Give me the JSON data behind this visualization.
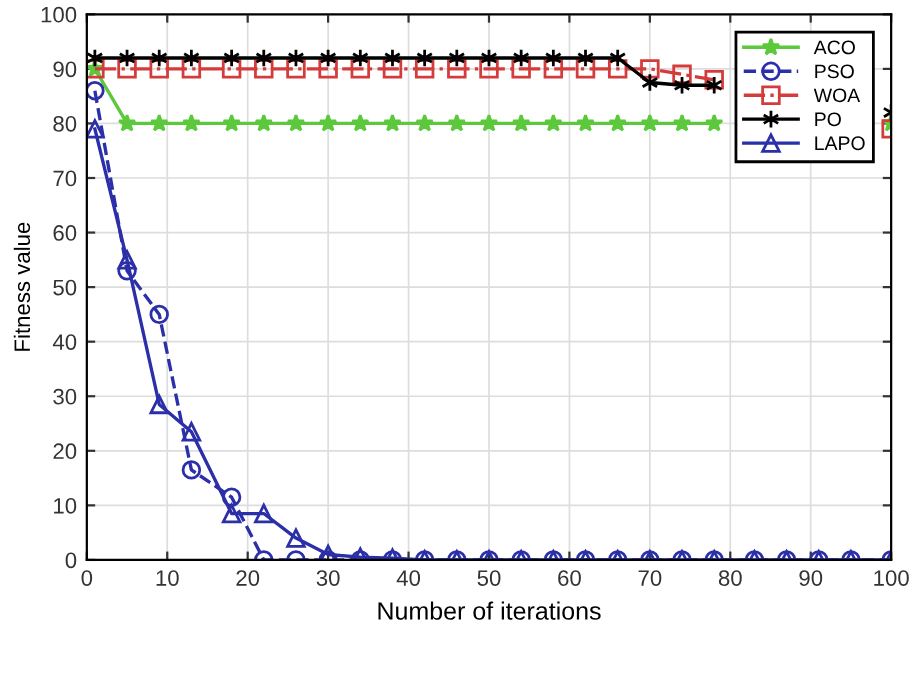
{
  "chart_data": {
    "type": "line",
    "xlabel": "Number of iterations",
    "ylabel": "Fitness value",
    "xlim": [
      0,
      100
    ],
    "ylim": [
      0,
      100
    ],
    "xticks": [
      0,
      10,
      20,
      30,
      40,
      50,
      60,
      70,
      80,
      90,
      100
    ],
    "yticks": [
      0,
      10,
      20,
      30,
      40,
      50,
      60,
      70,
      80,
      90,
      100
    ],
    "grid": true,
    "legend": "top right",
    "x": [
      1,
      5,
      9,
      13,
      18,
      22,
      26,
      30,
      34,
      38,
      42,
      46,
      50,
      54,
      58,
      62,
      66,
      70,
      74,
      78,
      83,
      87,
      91,
      95,
      100
    ],
    "series": [
      {
        "name": "ACO",
        "color": "#5cc83c",
        "marker": "star",
        "line_style": "solid",
        "values": [
          90,
          80,
          80,
          80,
          80,
          80,
          80,
          80,
          80,
          80,
          80,
          80,
          80,
          80,
          80,
          80,
          80,
          80,
          80,
          80,
          null,
          null,
          null,
          null,
          80
        ]
      },
      {
        "name": "PSO",
        "color": "#2b2fa8",
        "marker": "circle",
        "line_style": "dashed",
        "values": [
          86,
          53,
          45,
          16.5,
          11.5,
          0,
          0,
          0,
          0,
          0,
          0,
          0,
          0,
          0,
          0,
          0,
          0,
          0,
          0,
          0,
          0,
          0,
          0,
          0,
          0
        ]
      },
      {
        "name": "WOA",
        "color": "#d43c3c",
        "marker": "square",
        "line_style": "dashdot",
        "values": [
          90,
          90,
          90,
          90,
          90,
          90,
          90,
          90,
          90,
          90,
          90,
          90,
          90,
          90,
          90,
          90,
          90,
          90,
          89,
          88,
          null,
          null,
          null,
          null,
          79
        ]
      },
      {
        "name": "PO",
        "color": "#000000",
        "marker": "cross",
        "line_style": "solid",
        "values": [
          92,
          92,
          92,
          92,
          92,
          92,
          92,
          92,
          92,
          92,
          92,
          92,
          92,
          92,
          92,
          92,
          92,
          87.5,
          87,
          87,
          null,
          null,
          null,
          null,
          82
        ]
      },
      {
        "name": "LAPO",
        "color": "#2b2fa8",
        "marker": "triangle",
        "line_style": "solid",
        "values": [
          79,
          55,
          28.5,
          23.5,
          8.5,
          8.5,
          4,
          1,
          0.5,
          0.3,
          0,
          0,
          0,
          0,
          0,
          0,
          0,
          0,
          0,
          0,
          0,
          0,
          0,
          0,
          0
        ]
      }
    ]
  }
}
